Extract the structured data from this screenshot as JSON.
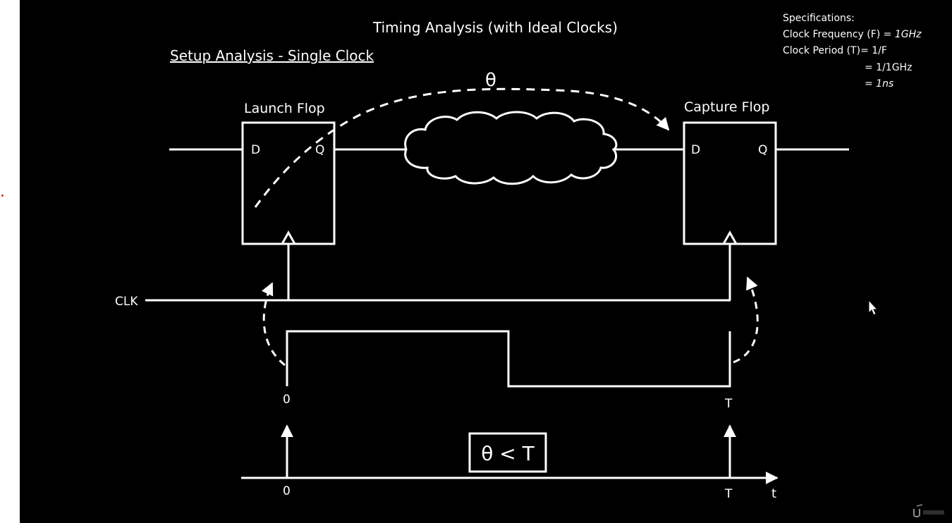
{
  "slide": {
    "title": "Timing Analysis (with Ideal Clocks)",
    "subtitle": "Setup Analysis - Single Clock"
  },
  "specs": {
    "heading": "Specifications:",
    "freq_label": "Clock Frequency (F) = ",
    "freq_value": "1GHz",
    "period_label": "Clock Period (T)= 1/F",
    "period_calc": "= 1/1GHz",
    "period_result": "= 1ns"
  },
  "circuit": {
    "launch_title": "Launch Flop",
    "capture_title": "Capture Flop",
    "d_label": "D",
    "q_label": "Q",
    "theta_label": "θ",
    "clk_label": "CLK"
  },
  "waveform": {
    "zero_label": "0",
    "t_label": "T"
  },
  "timeline": {
    "zero_label": "0",
    "t_label": "T",
    "axis_label": "t",
    "condition": "θ < T"
  },
  "colors": {
    "background": "#000000",
    "foreground": "#ffffff",
    "marker": "#e02020"
  },
  "icons": {
    "cursor": "arrow-cursor-icon",
    "logo": "udemy-logo"
  }
}
